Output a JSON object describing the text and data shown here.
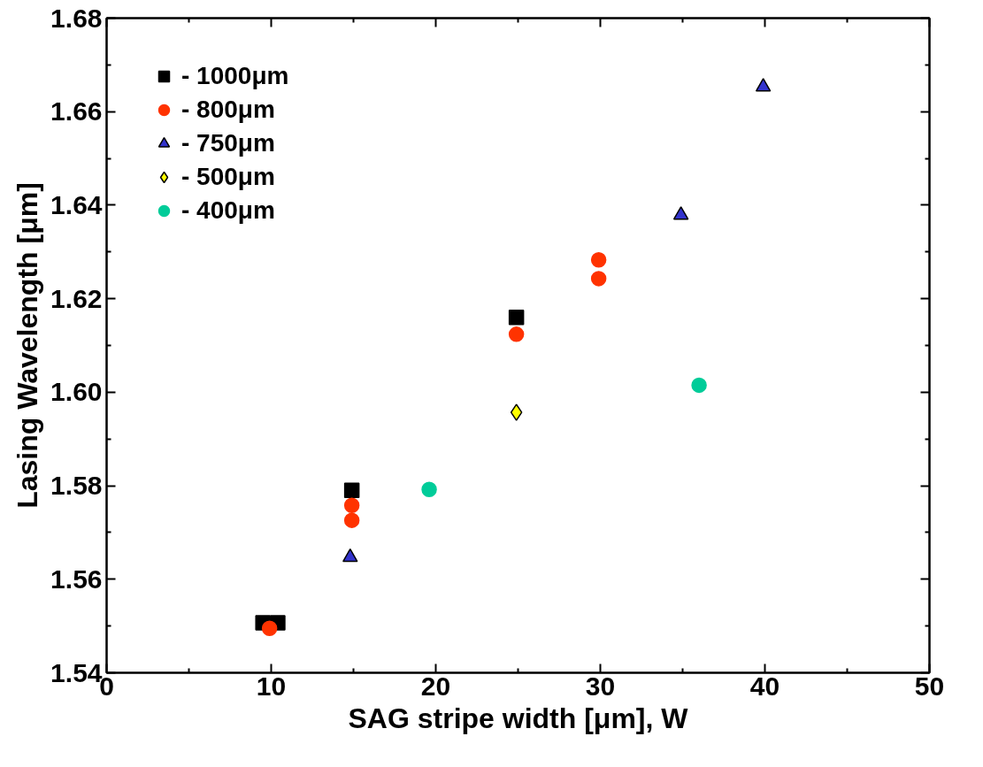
{
  "chart_data": {
    "type": "scatter",
    "xlabel": "SAG stripe width [μm], W",
    "ylabel": "Lasing Wavelength [μm]",
    "xlim": [
      0,
      50
    ],
    "ylim": [
      1.54,
      1.68
    ],
    "xticks": [
      0,
      10,
      20,
      30,
      40,
      50
    ],
    "yticks": [
      {
        "value": 1.54,
        "label": "1.54"
      },
      {
        "value": 1.56,
        "label": "1.56"
      },
      {
        "value": 1.58,
        "label": "1.58"
      },
      {
        "value": 1.6,
        "label": "1.60"
      },
      {
        "value": 1.62,
        "label": "1.62"
      },
      {
        "value": 1.64,
        "label": "1.64"
      },
      {
        "value": 1.66,
        "label": "1.66"
      },
      {
        "value": 1.68,
        "label": "1.68"
      }
    ],
    "grid": false,
    "legend": "top left",
    "series": [
      {
        "name": "- 1000μm",
        "color": "#000000",
        "marker": "square",
        "x": [
          9.5,
          10.4,
          14.9,
          24.9
        ],
        "values": [
          1.5507,
          1.5507,
          1.579,
          1.616
        ]
      },
      {
        "name": "- 800μm",
        "color": "#ff3300",
        "marker": "circle",
        "x": [
          9.9,
          14.9,
          14.9,
          24.9,
          29.9,
          29.9
        ],
        "values": [
          1.5495,
          1.5758,
          1.5726,
          1.6124,
          1.6283,
          1.6243
        ]
      },
      {
        "name": "- 750μm",
        "color": "#3333cc",
        "marker": "triangle",
        "x": [
          14.8,
          34.9,
          39.9
        ],
        "values": [
          1.5647,
          1.6379,
          1.6653
        ]
      },
      {
        "name": "- 500μm",
        "color": "#ffff00",
        "marker": "diamond",
        "x": [
          24.9
        ],
        "values": [
          1.5957
        ]
      },
      {
        "name": "- 400μm",
        "color": "#00cc99",
        "marker": "circle",
        "x": [
          19.6,
          36.0
        ],
        "values": [
          1.5792,
          1.6015
        ]
      }
    ]
  }
}
